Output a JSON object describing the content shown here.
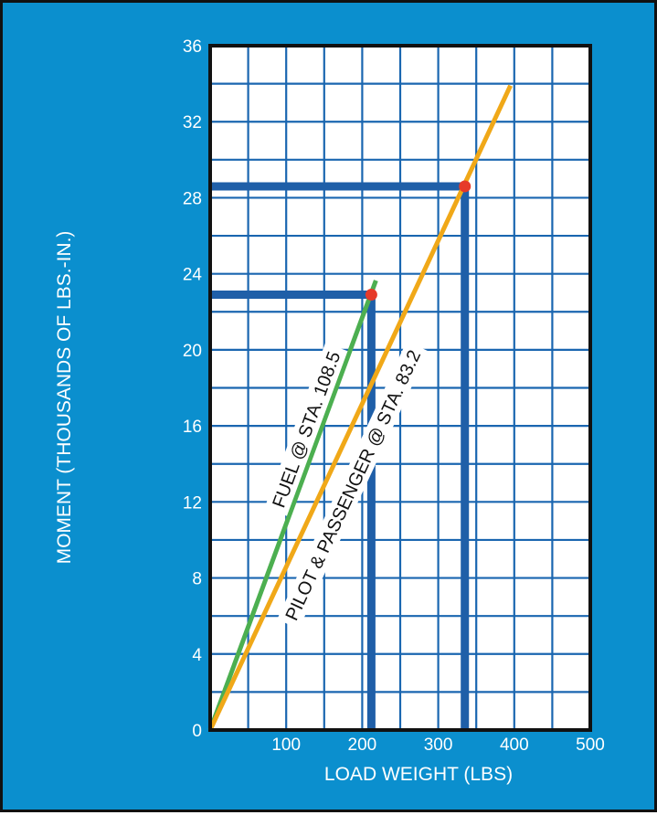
{
  "chart_data": {
    "type": "line",
    "xlabel": "LOAD WEIGHT (LBS)",
    "ylabel": "MOMENT (THOUSANDS OF LBS.-IN.)",
    "xlim": [
      0,
      500
    ],
    "ylim": [
      0,
      36
    ],
    "x_ticks": [
      "100",
      "200",
      "300",
      "400",
      "500"
    ],
    "y_ticks": [
      "0",
      "4",
      "8",
      "12",
      "16",
      "20",
      "24",
      "28",
      "32",
      "36"
    ],
    "grid": true,
    "series": [
      {
        "name": "FUEL @ STA. 108.5",
        "color": "#4caf50",
        "x": [
          0,
          218
        ],
        "y": [
          0,
          23.65
        ]
      },
      {
        "name": "PILOT & PASSENGER @ STA. 83.2",
        "color": "#f0a818",
        "x": [
          0,
          395
        ],
        "y": [
          0,
          33.9
        ]
      }
    ],
    "annotations": [
      {
        "x": 212,
        "y": 22.9,
        "color": "#e63a2a",
        "series": "FUEL @ STA. 108.5"
      },
      {
        "x": 335,
        "y": 28.6,
        "color": "#e63a2a",
        "series": "PILOT & PASSENGER @ STA. 83.2"
      }
    ],
    "colors": {
      "background": "#0b8fce",
      "plot": "#ffffff",
      "grid": "#1a66b0",
      "guide": "#1f5fa8",
      "border": "#111111"
    }
  }
}
